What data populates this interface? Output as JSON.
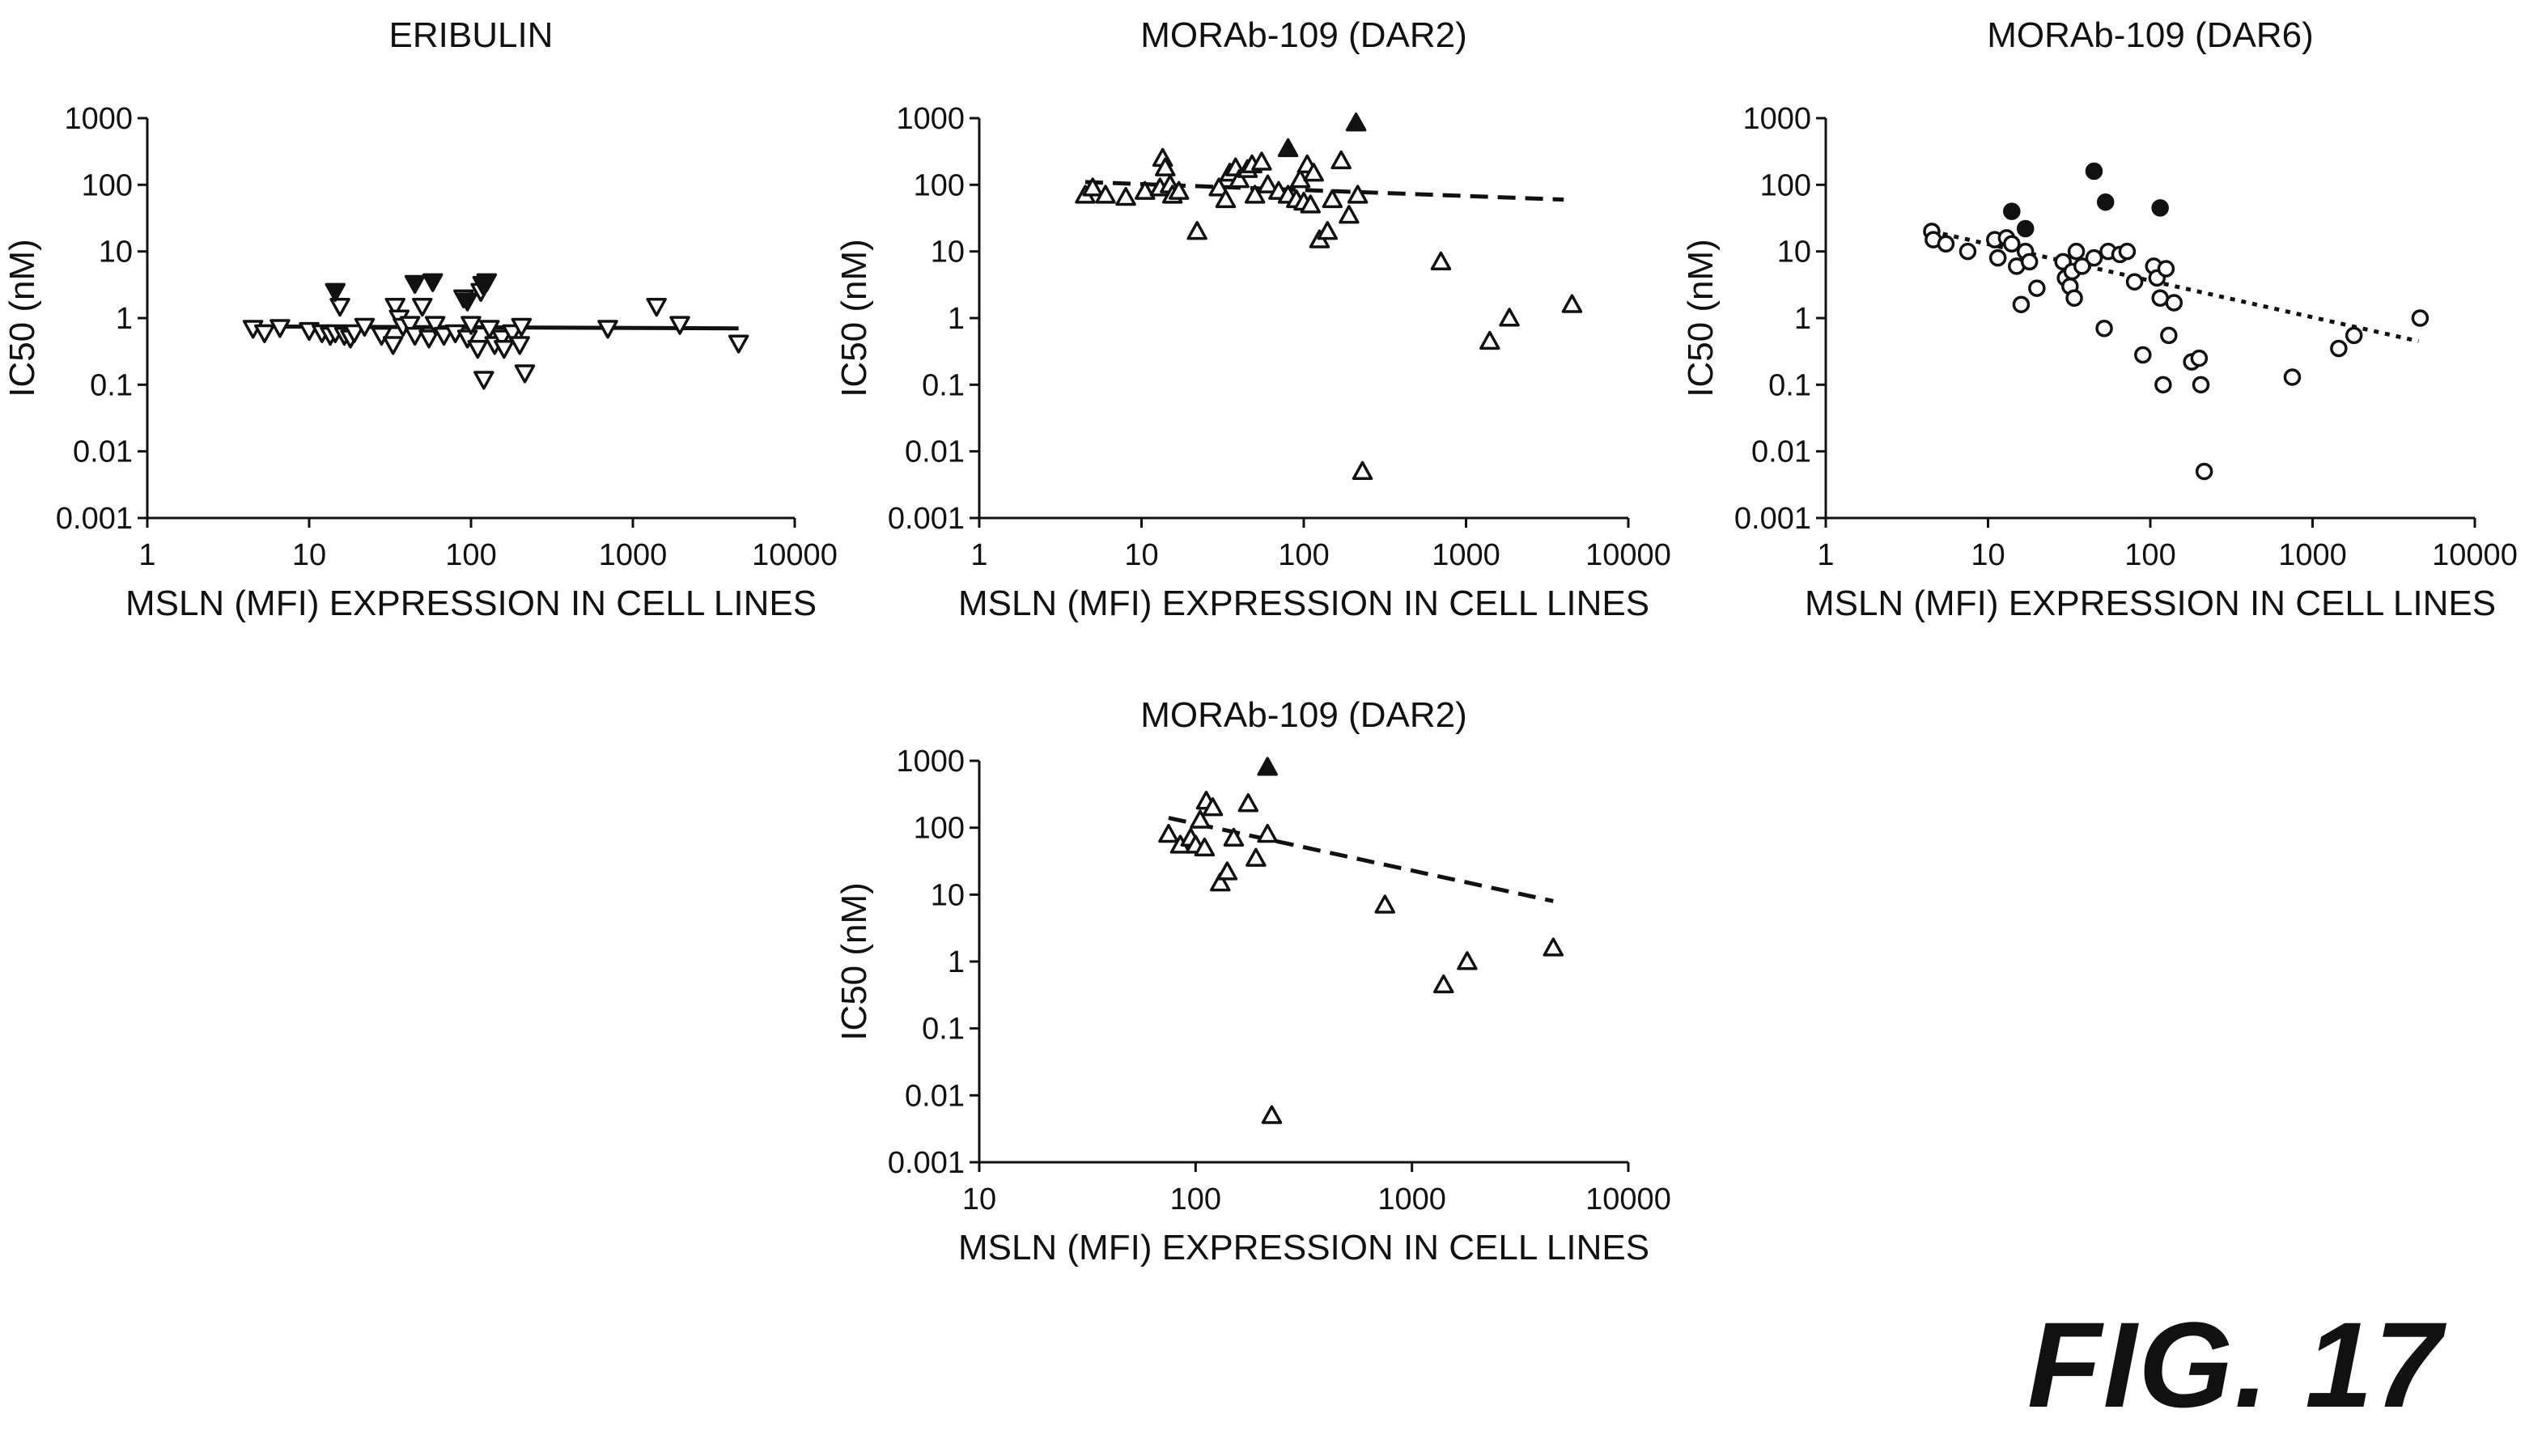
{
  "figure_label": "FIG. 17",
  "chart_data": [
    {
      "type": "scatter",
      "title": "ERIBULIN",
      "xlabel": "MSLN (MFI) EXPRESSION IN CELL LINES",
      "ylabel": "IC50 (nM)",
      "x_scale": "log",
      "y_scale": "log",
      "xlim": [
        1,
        10000
      ],
      "ylim": [
        0.001,
        1000
      ],
      "x_ticks": [
        "1",
        "10",
        "100",
        "1000",
        "10000"
      ],
      "y_ticks": [
        "0.001",
        "0.01",
        "0.1",
        "1",
        "10",
        "100",
        "1000"
      ],
      "trend": {
        "style": "solid",
        "x": [
          4.5,
          4500
        ],
        "y": [
          0.75,
          0.7
        ]
      },
      "series": [
        {
          "marker": "triangle-down",
          "filled": false,
          "points": [
            [
              4.5,
              0.7
            ],
            [
              5.3,
              0.6
            ],
            [
              6.6,
              0.72
            ],
            [
              10,
              0.65
            ],
            [
              12,
              0.6
            ],
            [
              13.5,
              0.55
            ],
            [
              14.5,
              0.6
            ],
            [
              15.5,
              1.5
            ],
            [
              16.5,
              0.55
            ],
            [
              18,
              0.5
            ],
            [
              19,
              0.6
            ],
            [
              22,
              0.75
            ],
            [
              28,
              0.55
            ],
            [
              33,
              0.4
            ],
            [
              34,
              1.5
            ],
            [
              36,
              1.0
            ],
            [
              38,
              0.75
            ],
            [
              42,
              0.8
            ],
            [
              45,
              0.55
            ],
            [
              50,
              1.5
            ],
            [
              55,
              0.5
            ],
            [
              60,
              0.8
            ],
            [
              68,
              0.55
            ],
            [
              80,
              0.6
            ],
            [
              90,
              2.0
            ],
            [
              95,
              0.5
            ],
            [
              100,
              0.8
            ],
            [
              110,
              0.35
            ],
            [
              115,
              2.5
            ],
            [
              120,
              0.12
            ],
            [
              130,
              0.7
            ],
            [
              140,
              0.4
            ],
            [
              155,
              0.5
            ],
            [
              160,
              0.35
            ],
            [
              180,
              0.6
            ],
            [
              200,
              0.4
            ],
            [
              205,
              0.75
            ],
            [
              215,
              0.15
            ],
            [
              700,
              0.7
            ],
            [
              1400,
              1.5
            ],
            [
              1950,
              0.8
            ],
            [
              4500,
              0.42
            ]
          ]
        },
        {
          "marker": "triangle-down",
          "filled": true,
          "points": [
            [
              14.5,
              2.5
            ],
            [
              45,
              3.3
            ],
            [
              58,
              3.5
            ],
            [
              95,
              1.8
            ],
            [
              118,
              3.2
            ],
            [
              125,
              3.5
            ]
          ]
        }
      ]
    },
    {
      "type": "scatter",
      "title": "MORAb-109 (DAR2)",
      "xlabel": "MSLN (MFI) EXPRESSION IN CELL LINES",
      "ylabel": "IC50 (nM)",
      "x_scale": "log",
      "y_scale": "log",
      "xlim": [
        1,
        10000
      ],
      "ylim": [
        0.001,
        1000
      ],
      "x_ticks": [
        "1",
        "10",
        "100",
        "1000",
        "10000"
      ],
      "y_ticks": [
        "0.001",
        "0.01",
        "0.1",
        "1",
        "10",
        "100",
        "1000"
      ],
      "trend": {
        "style": "dashed",
        "x": [
          4.5,
          4000
        ],
        "y": [
          110,
          60
        ]
      },
      "series": [
        {
          "marker": "triangle-up",
          "filled": false,
          "points": [
            [
              4.5,
              70
            ],
            [
              5.0,
              90
            ],
            [
              6.0,
              70
            ],
            [
              8.0,
              65
            ],
            [
              10.5,
              80
            ],
            [
              13,
              90
            ],
            [
              13.5,
              250
            ],
            [
              14,
              180
            ],
            [
              15,
              100
            ],
            [
              15.5,
              70
            ],
            [
              17,
              80
            ],
            [
              22,
              20
            ],
            [
              30,
              90
            ],
            [
              33,
              60
            ],
            [
              35,
              150
            ],
            [
              38,
              180
            ],
            [
              40,
              120
            ],
            [
              45,
              170
            ],
            [
              48,
              200
            ],
            [
              50,
              70
            ],
            [
              55,
              220
            ],
            [
              60,
              100
            ],
            [
              70,
              80
            ],
            [
              80,
              70
            ],
            [
              90,
              60
            ],
            [
              95,
              120
            ],
            [
              100,
              55
            ],
            [
              105,
              200
            ],
            [
              110,
              50
            ],
            [
              115,
              150
            ],
            [
              125,
              15
            ],
            [
              140,
              20
            ],
            [
              150,
              60
            ],
            [
              170,
              230
            ],
            [
              190,
              35
            ],
            [
              215,
              70
            ],
            [
              700,
              7
            ],
            [
              1400,
              0.45
            ],
            [
              1850,
              1.0
            ],
            [
              4500,
              1.6
            ],
            [
              230,
              0.005
            ]
          ]
        },
        {
          "marker": "triangle-up",
          "filled": true,
          "points": [
            [
              80,
              350
            ],
            [
              210,
              850
            ]
          ]
        }
      ]
    },
    {
      "type": "scatter",
      "title": "MORAb-109 (DAR6)",
      "xlabel": "MSLN (MFI) EXPRESSION IN CELL LINES",
      "ylabel": "IC50 (nM)",
      "x_scale": "log",
      "y_scale": "log",
      "xlim": [
        1,
        10000
      ],
      "ylim": [
        0.001,
        1000
      ],
      "x_ticks": [
        "1",
        "10",
        "100",
        "1000",
        "10000"
      ],
      "y_ticks": [
        "0.001",
        "0.01",
        "0.1",
        "1",
        "10",
        "100",
        "1000"
      ],
      "trend": {
        "style": "dotted",
        "x": [
          4.5,
          4500
        ],
        "y": [
          20,
          0.45
        ]
      },
      "series": [
        {
          "marker": "circle",
          "filled": false,
          "points": [
            [
              4.5,
              20
            ],
            [
              4.6,
              15
            ],
            [
              5.5,
              13
            ],
            [
              7.5,
              10
            ],
            [
              11,
              15
            ],
            [
              11.5,
              8
            ],
            [
              13,
              16
            ],
            [
              14,
              13
            ],
            [
              15,
              6
            ],
            [
              16,
              1.6
            ],
            [
              17,
              10
            ],
            [
              18,
              7
            ],
            [
              20,
              2.8
            ],
            [
              29,
              7
            ],
            [
              30,
              4
            ],
            [
              32,
              3
            ],
            [
              33,
              5
            ],
            [
              34,
              2
            ],
            [
              35,
              10
            ],
            [
              38,
              6
            ],
            [
              45,
              8
            ],
            [
              52,
              0.7
            ],
            [
              55,
              10
            ],
            [
              65,
              9
            ],
            [
              72,
              10
            ],
            [
              80,
              3.5
            ],
            [
              90,
              0.28
            ],
            [
              105,
              6
            ],
            [
              110,
              4
            ],
            [
              115,
              2
            ],
            [
              120,
              0.1
            ],
            [
              125,
              5.5
            ],
            [
              130,
              0.55
            ],
            [
              140,
              1.7
            ],
            [
              180,
              0.22
            ],
            [
              200,
              0.25
            ],
            [
              205,
              0.1
            ],
            [
              215,
              0.005
            ],
            [
              750,
              0.13
            ],
            [
              1450,
              0.35
            ],
            [
              1800,
              0.55
            ],
            [
              4600,
              1.0
            ]
          ]
        },
        {
          "marker": "circle",
          "filled": true,
          "points": [
            [
              14,
              40
            ],
            [
              17,
              22
            ],
            [
              45,
              160
            ],
            [
              53,
              55
            ],
            [
              115,
              45
            ]
          ]
        }
      ]
    },
    {
      "type": "scatter",
      "title": "MORAb-109 (DAR2)",
      "xlabel": "MSLN (MFI) EXPRESSION IN CELL LINES",
      "ylabel": "IC50 (nM)",
      "x_scale": "log",
      "y_scale": "log",
      "xlim": [
        10,
        10000
      ],
      "ylim": [
        0.001,
        1000
      ],
      "x_ticks": [
        "10",
        "100",
        "1000",
        "10000"
      ],
      "y_ticks": [
        "0.001",
        "0.01",
        "0.1",
        "1",
        "10",
        "100",
        "1000"
      ],
      "trend": {
        "style": "dashed",
        "x": [
          75,
          4500
        ],
        "y": [
          140,
          8
        ]
      },
      "series": [
        {
          "marker": "triangle-up",
          "filled": false,
          "points": [
            [
              75,
              80
            ],
            [
              85,
              55
            ],
            [
              95,
              70
            ],
            [
              100,
              55
            ],
            [
              105,
              130
            ],
            [
              110,
              50
            ],
            [
              112,
              250
            ],
            [
              120,
              200
            ],
            [
              130,
              15
            ],
            [
              140,
              22
            ],
            [
              150,
              70
            ],
            [
              175,
              230
            ],
            [
              190,
              35
            ],
            [
              215,
              80
            ],
            [
              750,
              7
            ],
            [
              1400,
              0.45
            ],
            [
              1800,
              1.0
            ],
            [
              4500,
              1.6
            ],
            [
              225,
              0.005
            ]
          ]
        },
        {
          "marker": "triangle-up",
          "filled": true,
          "points": [
            [
              215,
              800
            ]
          ]
        }
      ]
    }
  ]
}
